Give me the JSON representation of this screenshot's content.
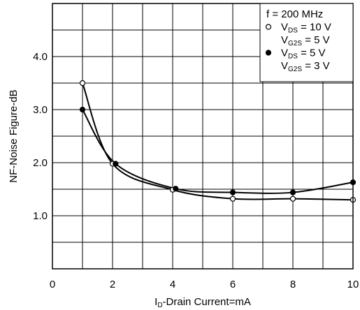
{
  "chart_data": {
    "type": "line",
    "title": "",
    "xlabel": {
      "prefix": "I",
      "sub": "D",
      "rest": "-Drain Current=mA"
    },
    "ylabel": "NF-Noise Figure-dB",
    "xlim": [
      0,
      10
    ],
    "ylim": [
      0,
      5
    ],
    "x_ticks": [
      0,
      2,
      4,
      6,
      8,
      10
    ],
    "x_tick_labels": [
      "0",
      "2",
      "4",
      "6",
      "8",
      "10"
    ],
    "y_ticks": [
      1,
      2,
      3,
      4
    ],
    "y_tick_labels": [
      "1.0",
      "2.0",
      "3.0",
      "4.0"
    ],
    "grid": true,
    "annotation": "f = 200 MHz",
    "legend_position": "top-right",
    "series": [
      {
        "marker": "open-circle",
        "legend_lines": [
          {
            "main": "V",
            "sub": "DS",
            "rest": " = 10 V"
          },
          {
            "main": "V",
            "sub": "G2S",
            "rest": " = 5 V"
          }
        ],
        "x": [
          1.0,
          2.0,
          4.0,
          6.0,
          8.0,
          10.0
        ],
        "y": [
          3.5,
          1.98,
          1.49,
          1.32,
          1.32,
          1.3
        ]
      },
      {
        "marker": "filled-circle",
        "legend_lines": [
          {
            "main": "V",
            "sub": "DS",
            "rest": " = 5 V"
          },
          {
            "main": "V",
            "sub": "G2S",
            "rest": " = 3 V"
          }
        ],
        "x": [
          1.0,
          2.1,
          4.1,
          6.0,
          8.0,
          10.0
        ],
        "y": [
          3.0,
          1.98,
          1.51,
          1.44,
          1.44,
          1.63
        ]
      }
    ]
  }
}
